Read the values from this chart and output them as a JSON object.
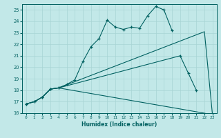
{
  "xlabel": "Humidex (Indice chaleur)",
  "bg_color": "#c2e8e8",
  "grid_color": "#a8d4d4",
  "line_color": "#006060",
  "xlim": [
    -0.5,
    23.5
  ],
  "ylim": [
    16,
    25.5
  ],
  "xticks": [
    0,
    1,
    2,
    3,
    4,
    5,
    6,
    7,
    8,
    9,
    10,
    11,
    12,
    13,
    14,
    15,
    16,
    17,
    18,
    19,
    20,
    21,
    22,
    23
  ],
  "yticks": [
    16,
    17,
    18,
    19,
    20,
    21,
    22,
    23,
    24,
    25
  ],
  "s1x": [
    0,
    1,
    2,
    3,
    4,
    5,
    6,
    7,
    8,
    9,
    10,
    11,
    12,
    13,
    14,
    15,
    16,
    17,
    18
  ],
  "s1y": [
    16.8,
    17.0,
    17.4,
    18.1,
    18.2,
    18.5,
    18.9,
    20.5,
    21.8,
    22.5,
    24.1,
    23.5,
    23.3,
    23.5,
    23.4,
    24.5,
    25.3,
    25.0,
    23.2
  ],
  "s2x": [
    0,
    1,
    2,
    3,
    4,
    19,
    20,
    21
  ],
  "s2y": [
    16.8,
    17.0,
    17.4,
    18.1,
    18.2,
    21.0,
    19.5,
    18.0
  ],
  "s3x": [
    0,
    1,
    2,
    3,
    4,
    22,
    23
  ],
  "s3y": [
    16.8,
    17.0,
    17.4,
    18.1,
    18.2,
    23.1,
    15.8
  ],
  "s4x": [
    0,
    1,
    2,
    3,
    4,
    22,
    23
  ],
  "s4y": [
    16.8,
    17.0,
    17.4,
    18.1,
    18.2,
    16.0,
    15.8
  ]
}
